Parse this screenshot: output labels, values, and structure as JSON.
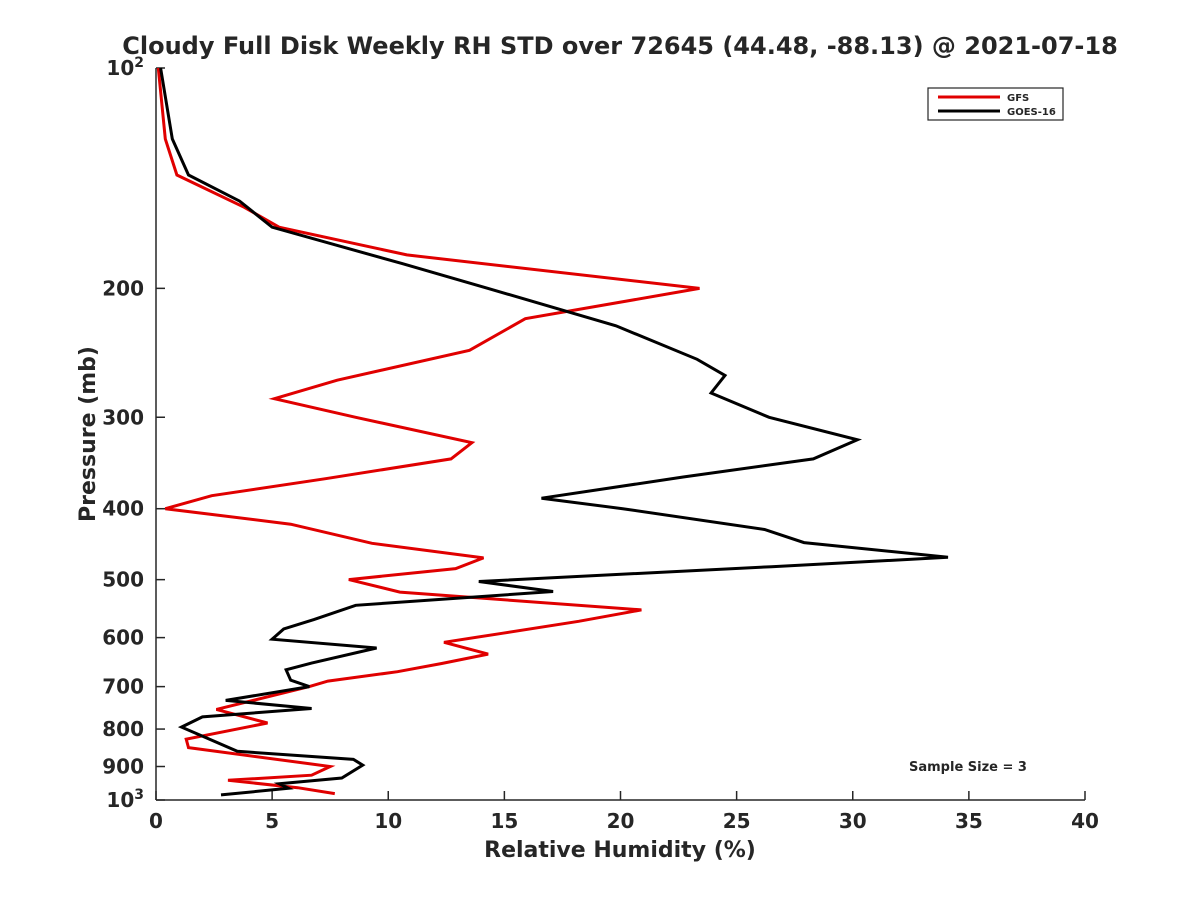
{
  "chart_data": {
    "type": "line",
    "title": "Cloudy Full Disk Weekly RH STD over 72645 (44.48, -88.13) @ 2021-07-18",
    "xlabel": "Relative Humidity (%)",
    "ylabel": "Pressure (mb)",
    "xlim": [
      0,
      40
    ],
    "ylim": [
      100,
      1000
    ],
    "y_scale": "log",
    "y_reversed": true,
    "grid": false,
    "legend_position": "top-right",
    "annotation": "Sample Size = 3",
    "x_ticks": [
      0,
      5,
      10,
      15,
      20,
      25,
      30,
      35,
      40
    ],
    "x_tick_labels": [
      "0",
      "5",
      "10",
      "15",
      "20",
      "25",
      "30",
      "35",
      "40"
    ],
    "y_ticks": [
      200,
      300,
      400,
      500,
      600,
      700,
      800,
      900
    ],
    "y_tick_labels": [
      "200",
      "300",
      "400",
      "500",
      "600",
      "700",
      "800",
      "900"
    ],
    "y_decade_ticks": [
      {
        "value": 100,
        "base": "10",
        "exp": "2"
      },
      {
        "value": 1000,
        "base": "10",
        "exp": "3"
      }
    ],
    "series": [
      {
        "name": "GFS",
        "color": "#e00000",
        "points": [
          {
            "x": 0.1,
            "p": 100
          },
          {
            "x": 0.4,
            "p": 125
          },
          {
            "x": 0.9,
            "p": 140
          },
          {
            "x": 3.8,
            "p": 155
          },
          {
            "x": 5.3,
            "p": 165
          },
          {
            "x": 10.8,
            "p": 180
          },
          {
            "x": 23.4,
            "p": 200
          },
          {
            "x": 15.9,
            "p": 220
          },
          {
            "x": 13.5,
            "p": 243
          },
          {
            "x": 7.8,
            "p": 267
          },
          {
            "x": 5.1,
            "p": 283
          },
          {
            "x": 8.6,
            "p": 300
          },
          {
            "x": 13.6,
            "p": 325
          },
          {
            "x": 12.7,
            "p": 342
          },
          {
            "x": 7.3,
            "p": 364
          },
          {
            "x": 2.4,
            "p": 384
          },
          {
            "x": 0.4,
            "p": 400
          },
          {
            "x": 5.8,
            "p": 420
          },
          {
            "x": 9.3,
            "p": 446
          },
          {
            "x": 14.1,
            "p": 467
          },
          {
            "x": 12.9,
            "p": 483
          },
          {
            "x": 8.3,
            "p": 500
          },
          {
            "x": 10.5,
            "p": 520
          },
          {
            "x": 20.9,
            "p": 550
          },
          {
            "x": 18.2,
            "p": 570
          },
          {
            "x": 14.9,
            "p": 592
          },
          {
            "x": 12.4,
            "p": 609
          },
          {
            "x": 14.3,
            "p": 632
          },
          {
            "x": 12.3,
            "p": 651
          },
          {
            "x": 10.4,
            "p": 668
          },
          {
            "x": 7.4,
            "p": 688
          },
          {
            "x": 6.6,
            "p": 700
          },
          {
            "x": 2.6,
            "p": 752
          },
          {
            "x": 4.8,
            "p": 785
          },
          {
            "x": 1.3,
            "p": 826
          },
          {
            "x": 1.4,
            "p": 848
          },
          {
            "x": 7.5,
            "p": 900
          },
          {
            "x": 6.7,
            "p": 925
          },
          {
            "x": 3.1,
            "p": 940
          },
          {
            "x": 6.1,
            "p": 962
          },
          {
            "x": 7.7,
            "p": 980
          }
        ]
      },
      {
        "name": "GOES-16",
        "color": "#000000",
        "points": [
          {
            "x": 0.2,
            "p": 100
          },
          {
            "x": 0.7,
            "p": 125
          },
          {
            "x": 1.4,
            "p": 140
          },
          {
            "x": 3.6,
            "p": 152
          },
          {
            "x": 5.0,
            "p": 165
          },
          {
            "x": 10.6,
            "p": 185
          },
          {
            "x": 14.3,
            "p": 200
          },
          {
            "x": 19.8,
            "p": 225
          },
          {
            "x": 23.3,
            "p": 250
          },
          {
            "x": 24.5,
            "p": 263
          },
          {
            "x": 23.9,
            "p": 278
          },
          {
            "x": 26.4,
            "p": 300
          },
          {
            "x": 30.2,
            "p": 322
          },
          {
            "x": 28.3,
            "p": 342
          },
          {
            "x": 22.7,
            "p": 362
          },
          {
            "x": 16.6,
            "p": 387
          },
          {
            "x": 20.1,
            "p": 400
          },
          {
            "x": 26.2,
            "p": 427
          },
          {
            "x": 27.9,
            "p": 445
          },
          {
            "x": 34.1,
            "p": 466
          },
          {
            "x": 26.5,
            "p": 480
          },
          {
            "x": 13.9,
            "p": 503
          },
          {
            "x": 17.1,
            "p": 519
          },
          {
            "x": 8.6,
            "p": 542
          },
          {
            "x": 6.8,
            "p": 567
          },
          {
            "x": 5.5,
            "p": 584
          },
          {
            "x": 5.0,
            "p": 603
          },
          {
            "x": 9.5,
            "p": 620
          },
          {
            "x": 6.7,
            "p": 650
          },
          {
            "x": 5.6,
            "p": 664
          },
          {
            "x": 5.8,
            "p": 686
          },
          {
            "x": 6.6,
            "p": 700
          },
          {
            "x": 3.0,
            "p": 731
          },
          {
            "x": 6.7,
            "p": 750
          },
          {
            "x": 2.0,
            "p": 770
          },
          {
            "x": 1.1,
            "p": 795
          },
          {
            "x": 2.0,
            "p": 818
          },
          {
            "x": 3.5,
            "p": 858
          },
          {
            "x": 8.5,
            "p": 880
          },
          {
            "x": 8.9,
            "p": 896
          },
          {
            "x": 8.0,
            "p": 933
          },
          {
            "x": 5.3,
            "p": 950
          },
          {
            "x": 5.7,
            "p": 964
          },
          {
            "x": 2.8,
            "p": 984
          }
        ]
      }
    ]
  }
}
